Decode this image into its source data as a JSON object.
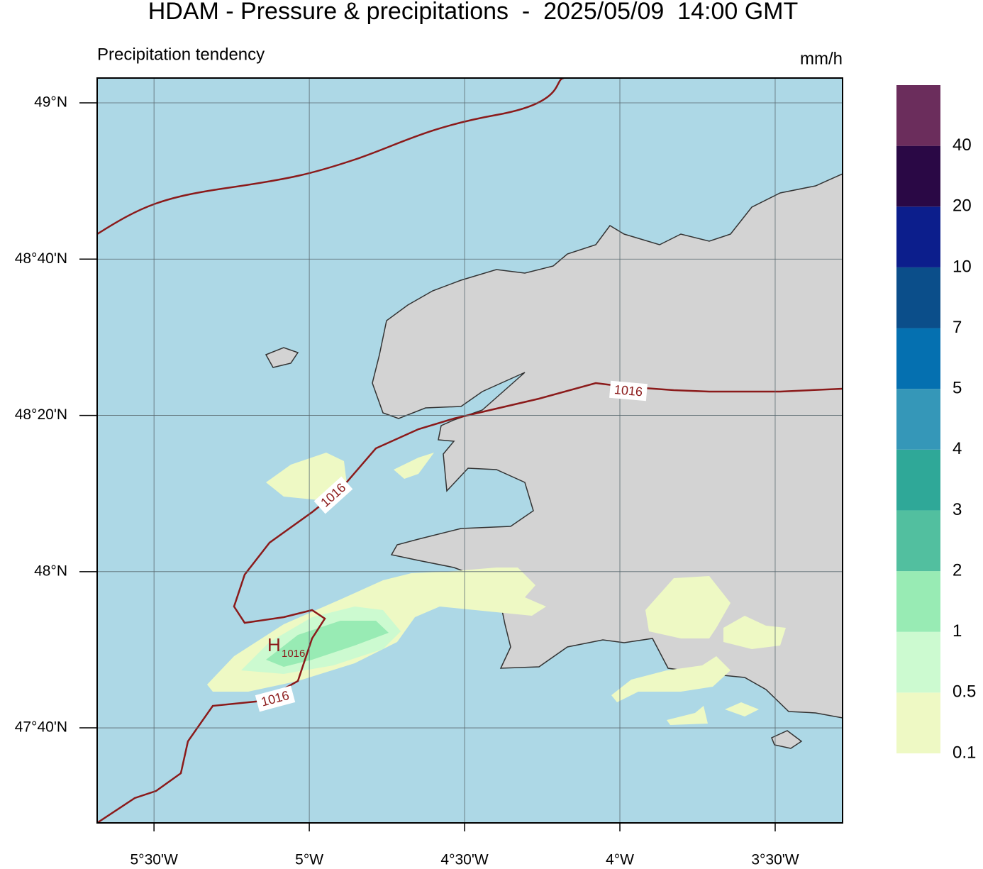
{
  "header": {
    "title": "HDAM - Pressure & precipitations  -  2025/05/09  14:00 GMT",
    "subtitle": "Precipitation tendency",
    "unit": "mm/h"
  },
  "map": {
    "xlim": [
      -5.683,
      -3.283
    ],
    "ylim": [
      47.464,
      49.053
    ],
    "xticks": [
      {
        "value": -5.5,
        "label": "5°30'W"
      },
      {
        "value": -5,
        "label": "5°W"
      },
      {
        "value": -4.5,
        "label": "4°30'W"
      },
      {
        "value": -4,
        "label": "4°W"
      },
      {
        "value": -3.5,
        "label": "3°30'W"
      }
    ],
    "yticks": [
      {
        "value": 49,
        "label": "49°N"
      },
      {
        "value": 48.6667,
        "label": "48°40'N"
      },
      {
        "value": 48.3333,
        "label": "48°20'N"
      },
      {
        "value": 48,
        "label": "48°N"
      },
      {
        "value": 47.6667,
        "label": "47°40'N"
      }
    ]
  },
  "annotations": {
    "isobar_labels": [
      "1016",
      "1016",
      "1016"
    ],
    "high": "H",
    "high_value": "1016"
  },
  "legend": {
    "levels": [
      0.1,
      0.5,
      1,
      2,
      3,
      4,
      5,
      7,
      10,
      20,
      40
    ],
    "colors": [
      "#eef9c4",
      "#ccfad0",
      "#98ebb4",
      "#52bf9f",
      "#2fa898",
      "#3597b8",
      "#0570b0",
      "#0b4e8a",
      "#0c1e8c",
      "#2a0845",
      "#6b2d5c"
    ]
  }
}
